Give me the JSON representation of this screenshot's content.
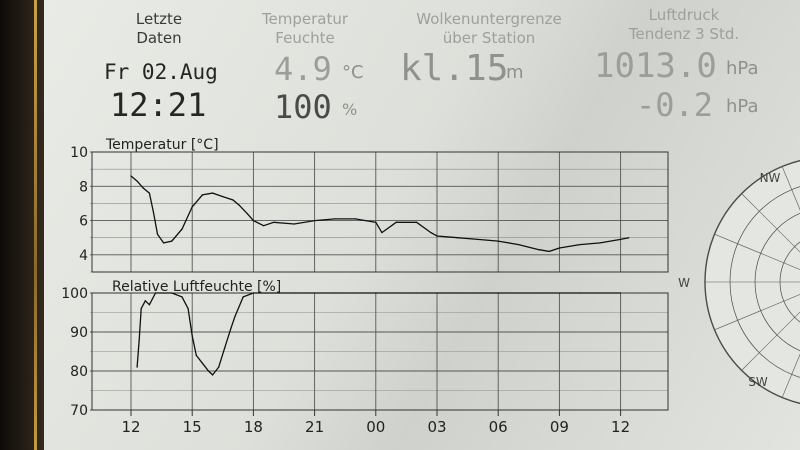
{
  "header": {
    "last_data": {
      "label_line1": "Letzte",
      "label_line2": "Daten",
      "date": "Fr 02.Aug",
      "time": "12:21"
    },
    "temperature": {
      "label_line1": "Temperatur",
      "label_line2": "Feuchte",
      "temp_value": "4.9",
      "temp_unit": "°C",
      "humidity_value": "100",
      "humidity_unit": "%"
    },
    "cloud_base": {
      "label_line1": "Wolkenuntergrenze",
      "label_line2": "über Station",
      "value": "kl.15",
      "unit": "m"
    },
    "pressure": {
      "label_line1": "Luftdruck",
      "label_line2": "Tendenz 3 Std.",
      "value": "1013.0",
      "unit": "hPa",
      "trend_value": "-0.2",
      "trend_unit": "hPa"
    }
  },
  "compass": {
    "labels": [
      "NW",
      "W",
      "SW"
    ]
  },
  "chart_data": [
    {
      "type": "line",
      "title": "Temperatur [°C]",
      "ylim": [
        3,
        10
      ],
      "yticks": [
        4,
        6,
        8,
        10
      ],
      "xticks": [
        "12",
        "15",
        "18",
        "21",
        "00",
        "03",
        "06",
        "09",
        "12"
      ],
      "x_hours": [
        0,
        0.3,
        0.6,
        0.9,
        1.1,
        1.3,
        1.6,
        2.0,
        2.5,
        3.0,
        3.5,
        4.0,
        4.5,
        5.0,
        5.3,
        5.7,
        6.0,
        6.5,
        7.0,
        8.0,
        9.0,
        10.0,
        11.0,
        12.0,
        12.3,
        13.0,
        14.0,
        14.7,
        15.0,
        16.0,
        17.0,
        18.0,
        19.0,
        20.0,
        20.5,
        21.0,
        22.0,
        23.0,
        24.0,
        24.4
      ],
      "series": [
        {
          "values": [
            8.6,
            8.3,
            7.9,
            7.6,
            6.5,
            5.2,
            4.7,
            4.8,
            5.5,
            6.8,
            7.5,
            7.6,
            7.4,
            7.2,
            6.9,
            6.4,
            6.0,
            5.7,
            5.9,
            5.8,
            6.0,
            6.1,
            6.1,
            5.9,
            5.3,
            5.9,
            5.9,
            5.3,
            5.1,
            5.0,
            4.9,
            4.8,
            4.6,
            4.3,
            4.2,
            4.4,
            4.6,
            4.7,
            4.9,
            5.0
          ]
        }
      ]
    },
    {
      "type": "line",
      "title": "Relative Luftfeuchte [%]",
      "ylim": [
        70,
        100
      ],
      "yticks": [
        70,
        80,
        90,
        100
      ],
      "xticks": [
        "12",
        "15",
        "18",
        "21",
        "00",
        "03",
        "06",
        "09",
        "12"
      ],
      "x_hours": [
        0.3,
        0.4,
        0.5,
        0.7,
        0.9,
        1.2,
        2.0,
        2.5,
        2.8,
        3.0,
        3.2,
        3.5,
        3.8,
        4.0,
        4.3,
        4.6,
        4.9,
        5.1,
        5.5,
        6.0,
        8.0,
        10.0,
        12.0,
        14.0,
        16.0,
        18.0,
        20.0,
        22.0,
        24.0
      ],
      "series": [
        {
          "values": [
            81,
            88,
            96,
            98,
            97,
            100,
            100,
            99,
            96,
            89,
            84,
            82,
            80,
            79,
            81,
            86,
            91,
            94,
            99,
            100,
            100,
            100,
            100,
            100,
            100,
            100,
            100,
            100,
            100
          ]
        }
      ]
    }
  ]
}
